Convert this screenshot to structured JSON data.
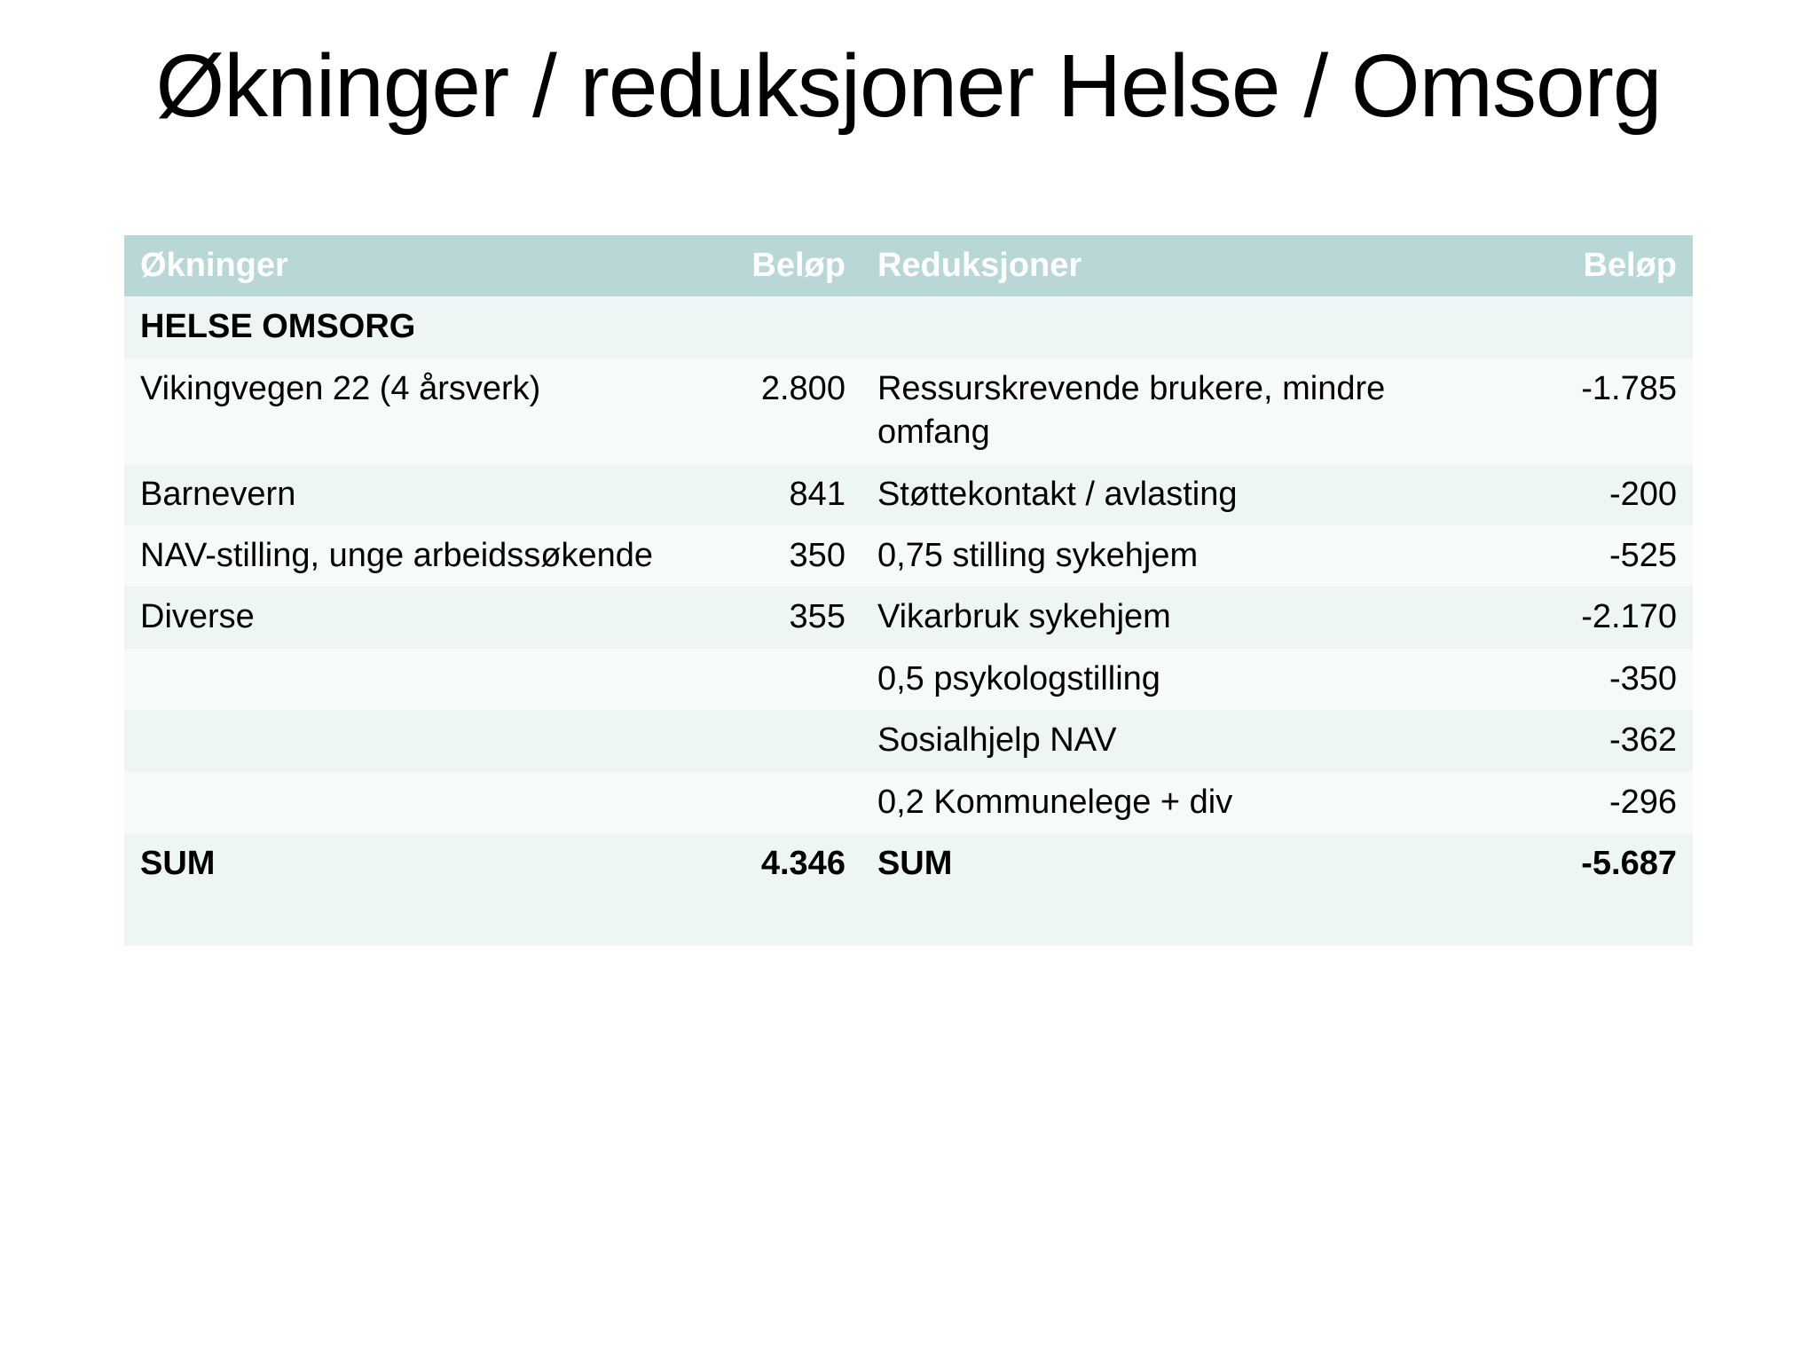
{
  "title": "Økninger / reduksjoner Helse / Omsorg",
  "table": {
    "headers": {
      "okninger": "Økninger",
      "belop1": "Beløp",
      "reduksjoner": "Reduksjoner",
      "belop2": "Beløp"
    },
    "section_label": "HELSE OMSORG",
    "rows": [
      {
        "okninger": "Vikingvegen 22 (4 årsverk)",
        "belop1": "2.800",
        "reduksjoner": "Ressurskrevende brukere, mindre omfang",
        "belop2": "-1.785"
      },
      {
        "okninger": "Barnevern",
        "belop1": "841",
        "reduksjoner": "Støttekontakt / avlasting",
        "belop2": "-200"
      },
      {
        "okninger": "NAV-stilling, unge arbeidssøkende",
        "belop1": "350",
        "reduksjoner": "0,75 stilling sykehjem",
        "belop2": "-525"
      },
      {
        "okninger": "Diverse",
        "belop1": "355",
        "reduksjoner": "Vikarbruk sykehjem",
        "belop2": "-2.170"
      },
      {
        "okninger": "",
        "belop1": "",
        "reduksjoner": "0,5 psykologstilling",
        "belop2": "-350"
      },
      {
        "okninger": "",
        "belop1": "",
        "reduksjoner": "Sosialhjelp NAV",
        "belop2": "-362"
      },
      {
        "okninger": "",
        "belop1": "",
        "reduksjoner": "0,2 Kommunelege + div",
        "belop2": "-296"
      }
    ],
    "sum": {
      "okninger": "SUM",
      "belop1": "4.346",
      "reduksjoner": "SUM",
      "belop2": "-5.687"
    },
    "colors": {
      "header_bg": "#b9d7d7",
      "header_text": "#ffffff",
      "row_odd_bg": "#eef5f5",
      "row_even_bg": "#f7fafa",
      "text_color": "#000000",
      "background": "#ffffff"
    },
    "typography": {
      "title_fontsize": 100,
      "cell_fontsize": 38,
      "font_family": "Arial"
    },
    "column_widths": [
      "35%",
      "12%",
      "41%",
      "12%"
    ],
    "column_alignment": [
      "left",
      "right",
      "left",
      "right"
    ],
    "type": "table"
  }
}
